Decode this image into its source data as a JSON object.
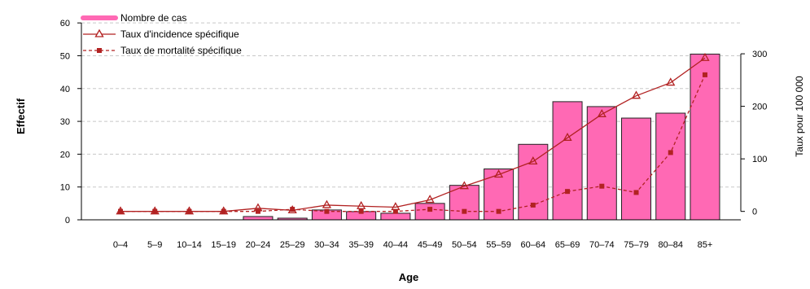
{
  "chart_data": {
    "type": "bar",
    "xlabel": "Age",
    "ylabel_left": "Effectif",
    "ylabel_right": "Taux pour 100 000",
    "categories": [
      "0–4",
      "5–9",
      "10–14",
      "15–19",
      "20–24",
      "25–29",
      "30–34",
      "35–39",
      "40–44",
      "45–49",
      "50–54",
      "55–59",
      "60–64",
      "65–69",
      "70–74",
      "75–79",
      "80–84",
      "85+"
    ],
    "ylim_left": [
      0,
      65
    ],
    "yticks_left": [
      "0",
      "10",
      "20",
      "30",
      "40",
      "50",
      "60"
    ],
    "ylim_right": [
      -16,
      390
    ],
    "yticks_right": [
      "0",
      "100",
      "200",
      "300"
    ],
    "grid": "horizontal dashed",
    "legend_position": "top-left",
    "series": [
      {
        "name": "Nombre de cas",
        "kind": "bar",
        "axis": "left",
        "color": "#ff69b4",
        "values": [
          0,
          0,
          0,
          0,
          1,
          0.5,
          3,
          2.5,
          2,
          5,
          10.5,
          15.5,
          23,
          36,
          34.5,
          31,
          32.5,
          50.5
        ]
      },
      {
        "name": "Taux d'incidence spécifique",
        "kind": "line",
        "axis": "right",
        "marker": "triangle",
        "color": "#b22222",
        "values": [
          0,
          0,
          0,
          0,
          6,
          2,
          12,
          10,
          8,
          22,
          48,
          70,
          95,
          140,
          185,
          220,
          245,
          292
        ]
      },
      {
        "name": "Taux de mortalité spécifique",
        "kind": "line-dashed",
        "axis": "right",
        "marker": "square",
        "color": "#b22222",
        "values": [
          0,
          0,
          0,
          0,
          0,
          4,
          0,
          0,
          0,
          4,
          0,
          0,
          12,
          38,
          48,
          36,
          112,
          260
        ]
      }
    ]
  }
}
